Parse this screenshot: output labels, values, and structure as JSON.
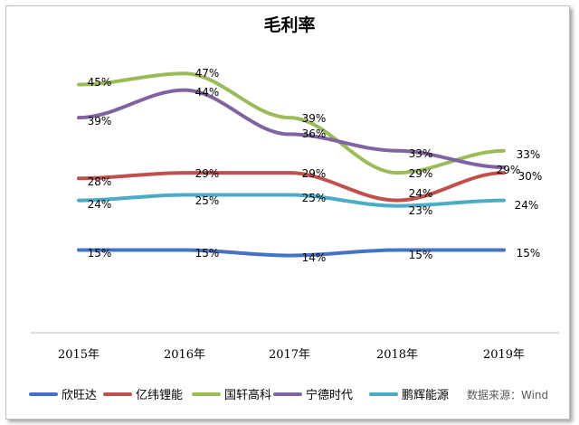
{
  "chart_data": {
    "type": "line",
    "title": "毛利率",
    "categories": [
      "2015年",
      "2016年",
      "2017年",
      "2018年",
      "2019年"
    ],
    "ylim": [
      0,
      50
    ],
    "grid": false,
    "legend_position": "bottom",
    "source": "数据来源：Wind",
    "series": [
      {
        "name": "欣旺达",
        "color": "#4472C4",
        "values": [
          15,
          15,
          14,
          15,
          15
        ],
        "labels": [
          "15%",
          "15%",
          "14%",
          "15%",
          "15%"
        ]
      },
      {
        "name": "亿纬锂能",
        "color": "#C0504D",
        "values": [
          28,
          29,
          29,
          24,
          29
        ],
        "labels": [
          "28%",
          "29%",
          "29%",
          "24%",
          "29%"
        ]
      },
      {
        "name": "国轩高科",
        "color": "#9BBB59",
        "values": [
          45,
          47,
          39,
          29,
          33
        ],
        "labels": [
          "45%",
          "47%",
          "39%",
          "29%",
          "33%"
        ]
      },
      {
        "name": "宁德时代",
        "color": "#8064A2",
        "values": [
          39,
          44,
          36,
          33,
          30
        ],
        "labels": [
          "39%",
          "44%",
          "36%",
          "33%",
          "30%"
        ]
      },
      {
        "name": "鹏辉能源",
        "color": "#4BACC6",
        "values": [
          24,
          25,
          25,
          23,
          24
        ],
        "labels": [
          "24%",
          "25%",
          "25%",
          "23%",
          "24%"
        ]
      }
    ]
  }
}
